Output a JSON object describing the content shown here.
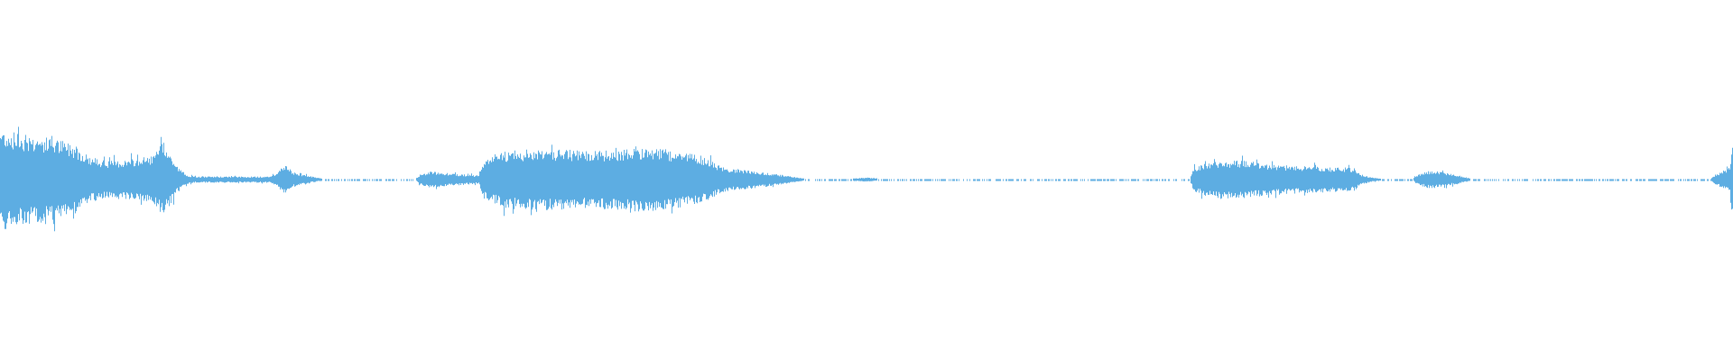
{
  "waveform": {
    "color": "#5dade2",
    "background": "#ffffff"
  }
}
